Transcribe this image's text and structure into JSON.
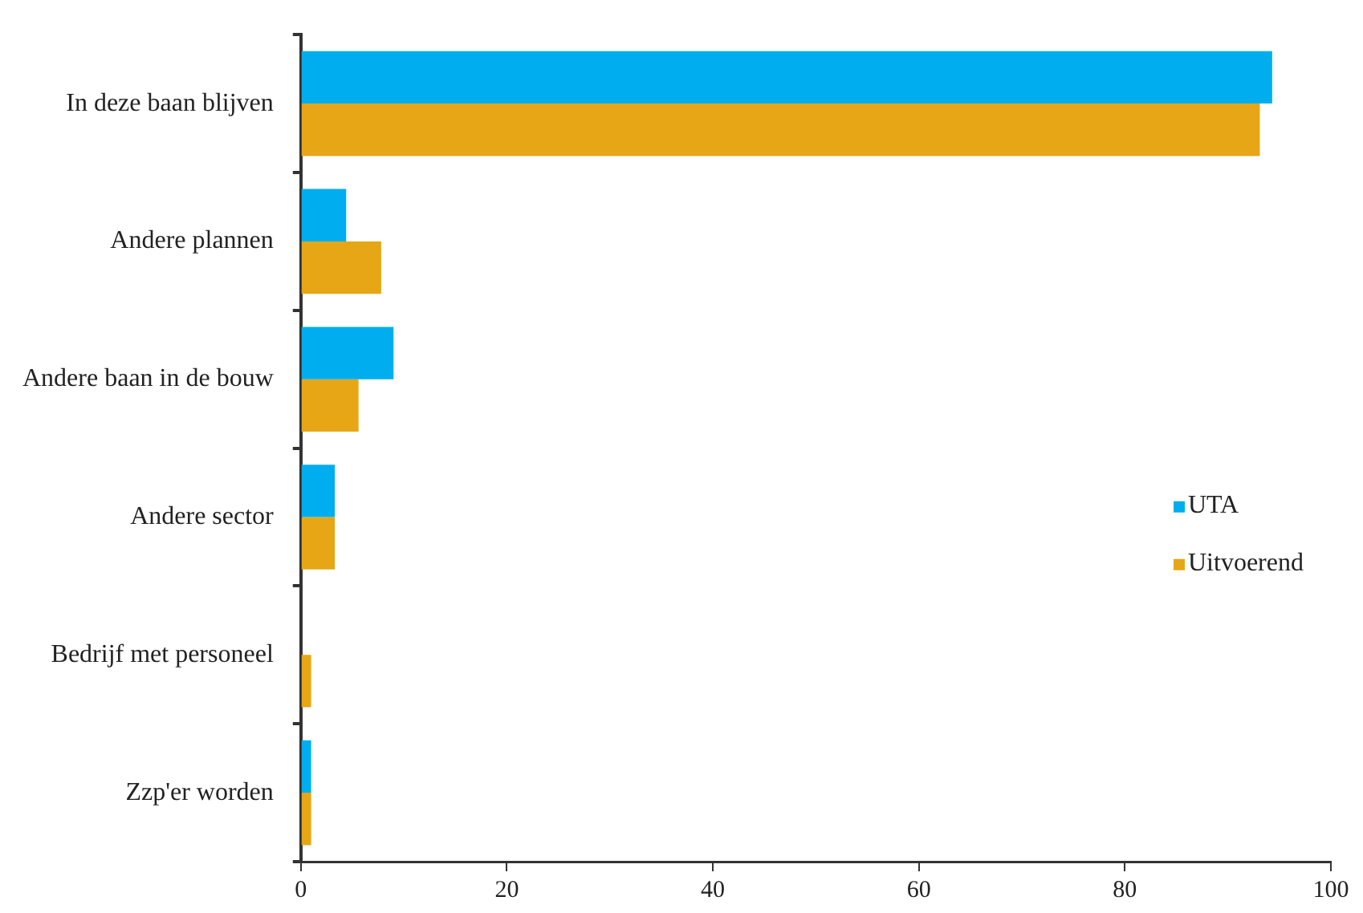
{
  "chart_data": {
    "type": "bar",
    "orientation": "horizontal",
    "categories": [
      "In deze baan blijven",
      "Andere plannen",
      "Andere baan in de bouw",
      "Andere sector",
      "Bedrijf met personeel",
      "Zzp'er worden"
    ],
    "series": [
      {
        "name": "UTA",
        "color": "#00aeef",
        "values": [
          94.3,
          4.4,
          9.0,
          3.3,
          0,
          1.0
        ]
      },
      {
        "name": "Uitvoerend",
        "color": "#e6a616",
        "values": [
          93.1,
          7.8,
          5.6,
          3.3,
          1.0,
          1.0
        ]
      }
    ],
    "xlim": [
      0,
      100
    ],
    "xticks": [
      0,
      20,
      40,
      60,
      80,
      100
    ],
    "grid": false,
    "legend": "right"
  }
}
